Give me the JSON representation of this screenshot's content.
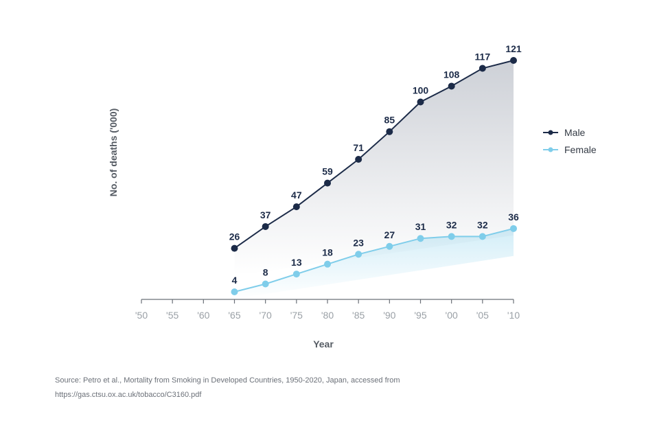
{
  "chart_data": {
    "type": "line",
    "title": "",
    "xlabel": "Year",
    "ylabel": "No. of deaths  ('000)",
    "x_ticks": [
      "'50",
      "'55",
      "'60",
      "'65",
      "'70",
      "'75",
      "'80",
      "'85",
      "'90",
      "'95",
      "'00",
      "'05",
      "'10"
    ],
    "x_range": [
      1950,
      2010
    ],
    "ylim": [
      0,
      130
    ],
    "grid": false,
    "legend_position": "right",
    "x": [
      1965,
      1970,
      1975,
      1980,
      1985,
      1990,
      1995,
      2000,
      2005,
      2010
    ],
    "series": [
      {
        "name": "Male",
        "color": "#1c2b48",
        "values": [
          26,
          37,
          47,
          59,
          71,
          85,
          100,
          108,
          117,
          121
        ]
      },
      {
        "name": "Female",
        "color": "#7fcdea",
        "values": [
          4,
          8,
          13,
          18,
          23,
          27,
          31,
          32,
          32,
          36
        ]
      }
    ]
  },
  "source": {
    "line1": "Source: Petro et al., Mortality from Smoking in Developed Countries, 1950-2020, Japan, accessed from",
    "line2": "https://gas.ctsu.ox.ac.uk/tobacco/C3160.pdf"
  }
}
